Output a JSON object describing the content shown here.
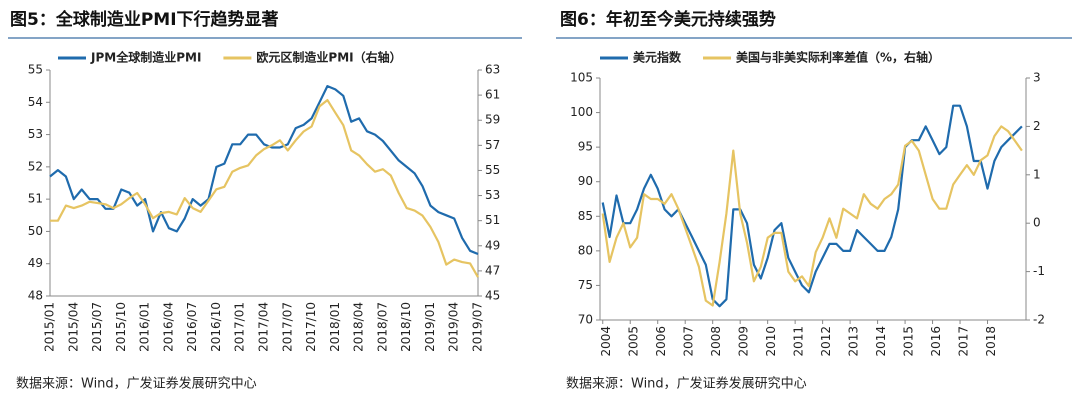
{
  "chart_data": [
    {
      "type": "line",
      "title": "图5：全球制造业PMI下行趋势显著",
      "source": "数据来源：Wind，广发证券发展研究中心",
      "categories": [
        "2015/01",
        null,
        null,
        "2015/04",
        null,
        null,
        "2015/07",
        null,
        null,
        "2015/10",
        null,
        null,
        "2016/01",
        null,
        null,
        "2016/04",
        null,
        null,
        "2016/07",
        null,
        null,
        "2016/10",
        null,
        null,
        "2017/01",
        null,
        null,
        "2017/04",
        null,
        null,
        "2017/07",
        null,
        null,
        "2017/10",
        null,
        null,
        "2018/01",
        null,
        null,
        "2018/04",
        null,
        null,
        "2018/07",
        null,
        null,
        "2018/10",
        null,
        null,
        "2019/01",
        null,
        null,
        "2019/04",
        null,
        null,
        "2019/07"
      ],
      "series": [
        {
          "name": "JPM全球制造业PMI",
          "color": "#1f6bad",
          "values": [
            51.7,
            51.9,
            51.7,
            51.0,
            51.3,
            51.0,
            51.0,
            50.7,
            50.7,
            51.3,
            51.2,
            50.8,
            51.0,
            50.0,
            50.6,
            50.1,
            50.0,
            50.4,
            51.0,
            50.8,
            51.0,
            52.0,
            52.1,
            52.7,
            52.7,
            53.0,
            53.0,
            52.7,
            52.6,
            52.6,
            52.7,
            53.2,
            53.3,
            53.5,
            54.0,
            54.5,
            54.4,
            54.2,
            53.4,
            53.5,
            53.1,
            53.0,
            52.8,
            52.5,
            52.2,
            52.0,
            51.8,
            51.4,
            50.8,
            50.6,
            50.5,
            50.4,
            49.8,
            49.4,
            49.3
          ]
        },
        {
          "name": "欧元区制造业PMI（右轴）",
          "color": "#e6c462",
          "axis": "y2",
          "values": [
            51.0,
            51.0,
            52.2,
            52.0,
            52.2,
            52.5,
            52.4,
            52.3,
            52.0,
            52.3,
            52.8,
            53.2,
            52.3,
            51.2,
            51.6,
            51.7,
            51.5,
            52.8,
            52.0,
            51.7,
            52.6,
            53.5,
            53.7,
            54.9,
            55.2,
            55.4,
            56.2,
            56.7,
            57.0,
            57.4,
            56.6,
            57.4,
            58.1,
            58.5,
            60.1,
            60.6,
            59.6,
            58.6,
            56.6,
            56.2,
            55.5,
            54.9,
            55.1,
            54.6,
            53.2,
            52.0,
            51.8,
            51.4,
            50.5,
            49.3,
            47.5,
            47.9,
            47.7,
            47.6,
            46.5
          ]
        }
      ],
      "ylim": [
        48,
        55
      ],
      "yticks": [
        48,
        49,
        50,
        51,
        52,
        53,
        54,
        55
      ],
      "y2lim": [
        45,
        63
      ],
      "y2ticks": [
        45,
        47,
        49,
        51,
        53,
        55,
        57,
        59,
        61,
        63
      ]
    },
    {
      "type": "line",
      "title": "图6：年初至今美元持续强势",
      "source": "数据来源：Wind，广发证券发展研究中心",
      "x": [
        2004,
        2004.25,
        2004.5,
        2004.75,
        2005,
        2005.25,
        2005.5,
        2005.75,
        2006,
        2006.25,
        2006.5,
        2006.75,
        2007,
        2007.25,
        2007.5,
        2007.75,
        2008,
        2008.25,
        2008.5,
        2008.75,
        2009,
        2009.25,
        2009.5,
        2009.75,
        2010,
        2010.25,
        2010.5,
        2010.75,
        2011,
        2011.25,
        2011.5,
        2011.75,
        2012,
        2012.25,
        2012.5,
        2012.75,
        2013,
        2013.25,
        2013.5,
        2013.75,
        2014,
        2014.25,
        2014.5,
        2014.75,
        2015,
        2015.25,
        2015.5,
        2015.75,
        2016,
        2016.25,
        2016.5,
        2016.75,
        2017,
        2017.25,
        2017.5,
        2017.75,
        2018,
        2018.25,
        2018.5,
        2018.75,
        2019,
        2019.25
      ],
      "xlim": [
        2003.9,
        2019.4
      ],
      "xticks": [
        2004,
        2005,
        2006,
        2007,
        2008,
        2009,
        2010,
        2011,
        2012,
        2013,
        2014,
        2015,
        2016,
        2017,
        2018
      ],
      "series": [
        {
          "name": "美元指数",
          "color": "#1f6bad",
          "values": [
            87,
            82,
            88,
            84,
            84,
            86,
            89,
            91,
            89,
            86,
            85,
            86,
            84,
            82,
            80,
            78,
            73,
            72,
            73,
            86,
            86,
            84,
            78,
            76,
            79,
            83,
            84,
            79,
            77,
            75,
            74,
            77,
            79,
            81,
            81,
            80,
            80,
            83,
            82,
            81,
            80,
            80,
            82,
            86,
            95,
            96,
            96,
            98,
            96,
            94,
            95,
            101,
            101,
            98,
            93,
            93,
            89,
            93,
            95,
            96,
            97,
            98
          ]
        },
        {
          "name": "美国与非美实际利率差值（%，右轴）",
          "color": "#e6c462",
          "axis": "y2",
          "values": [
            0.2,
            -0.8,
            -0.3,
            0,
            -0.5,
            -0.3,
            0.6,
            0.5,
            0.5,
            0.4,
            0.6,
            0.3,
            -0.1,
            -0.5,
            -0.9,
            -1.6,
            -1.7,
            -0.8,
            0.2,
            1.5,
            0.2,
            -0.4,
            -1.2,
            -0.9,
            -0.3,
            -0.2,
            -0.2,
            -1,
            -1.2,
            -1.1,
            -1.3,
            -0.6,
            -0.3,
            0.1,
            -0.3,
            0.3,
            0.2,
            0.1,
            0.6,
            0.4,
            0.3,
            0.5,
            0.6,
            0.8,
            1.6,
            1.7,
            1.5,
            1.0,
            0.5,
            0.3,
            0.3,
            0.8,
            1.0,
            1.2,
            1.0,
            1.3,
            1.4,
            1.8,
            2.0,
            1.9,
            1.7,
            1.5
          ]
        }
      ],
      "ylim": [
        70,
        105
      ],
      "yticks": [
        70,
        75,
        80,
        85,
        90,
        95,
        100,
        105
      ],
      "y2lim": [
        -2,
        3
      ],
      "y2ticks": [
        -2,
        -1,
        0,
        1,
        2,
        3
      ]
    }
  ]
}
